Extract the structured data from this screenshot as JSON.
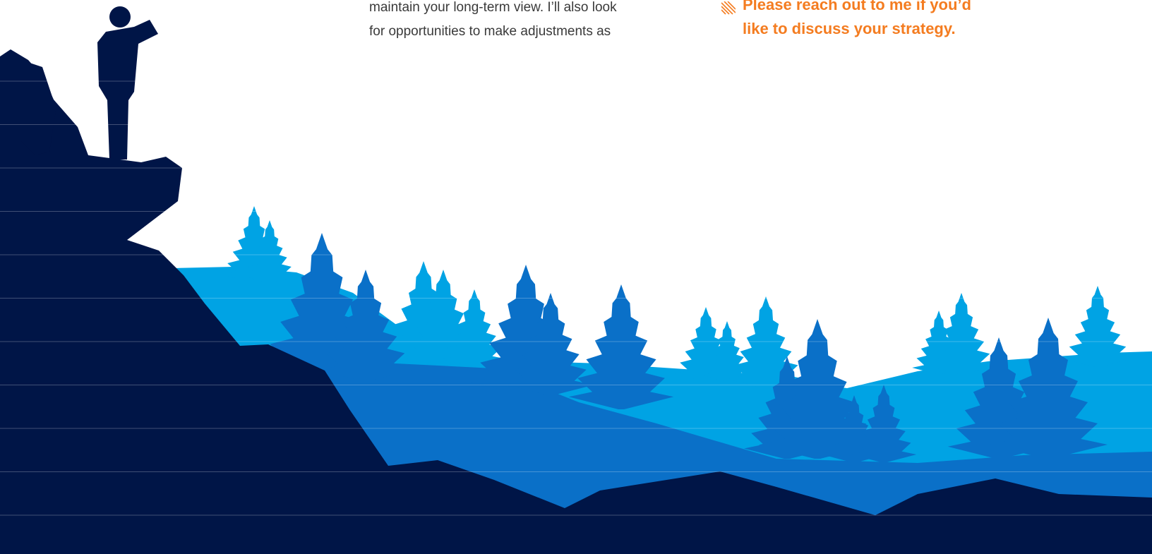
{
  "body": {
    "lines": [
      "maintain your long-term view. I’ll also look",
      "for opportunities to make adjustments as"
    ]
  },
  "callout": {
    "lines": [
      "Please reach out to me if you’d",
      "like to discuss your strategy."
    ]
  }
}
